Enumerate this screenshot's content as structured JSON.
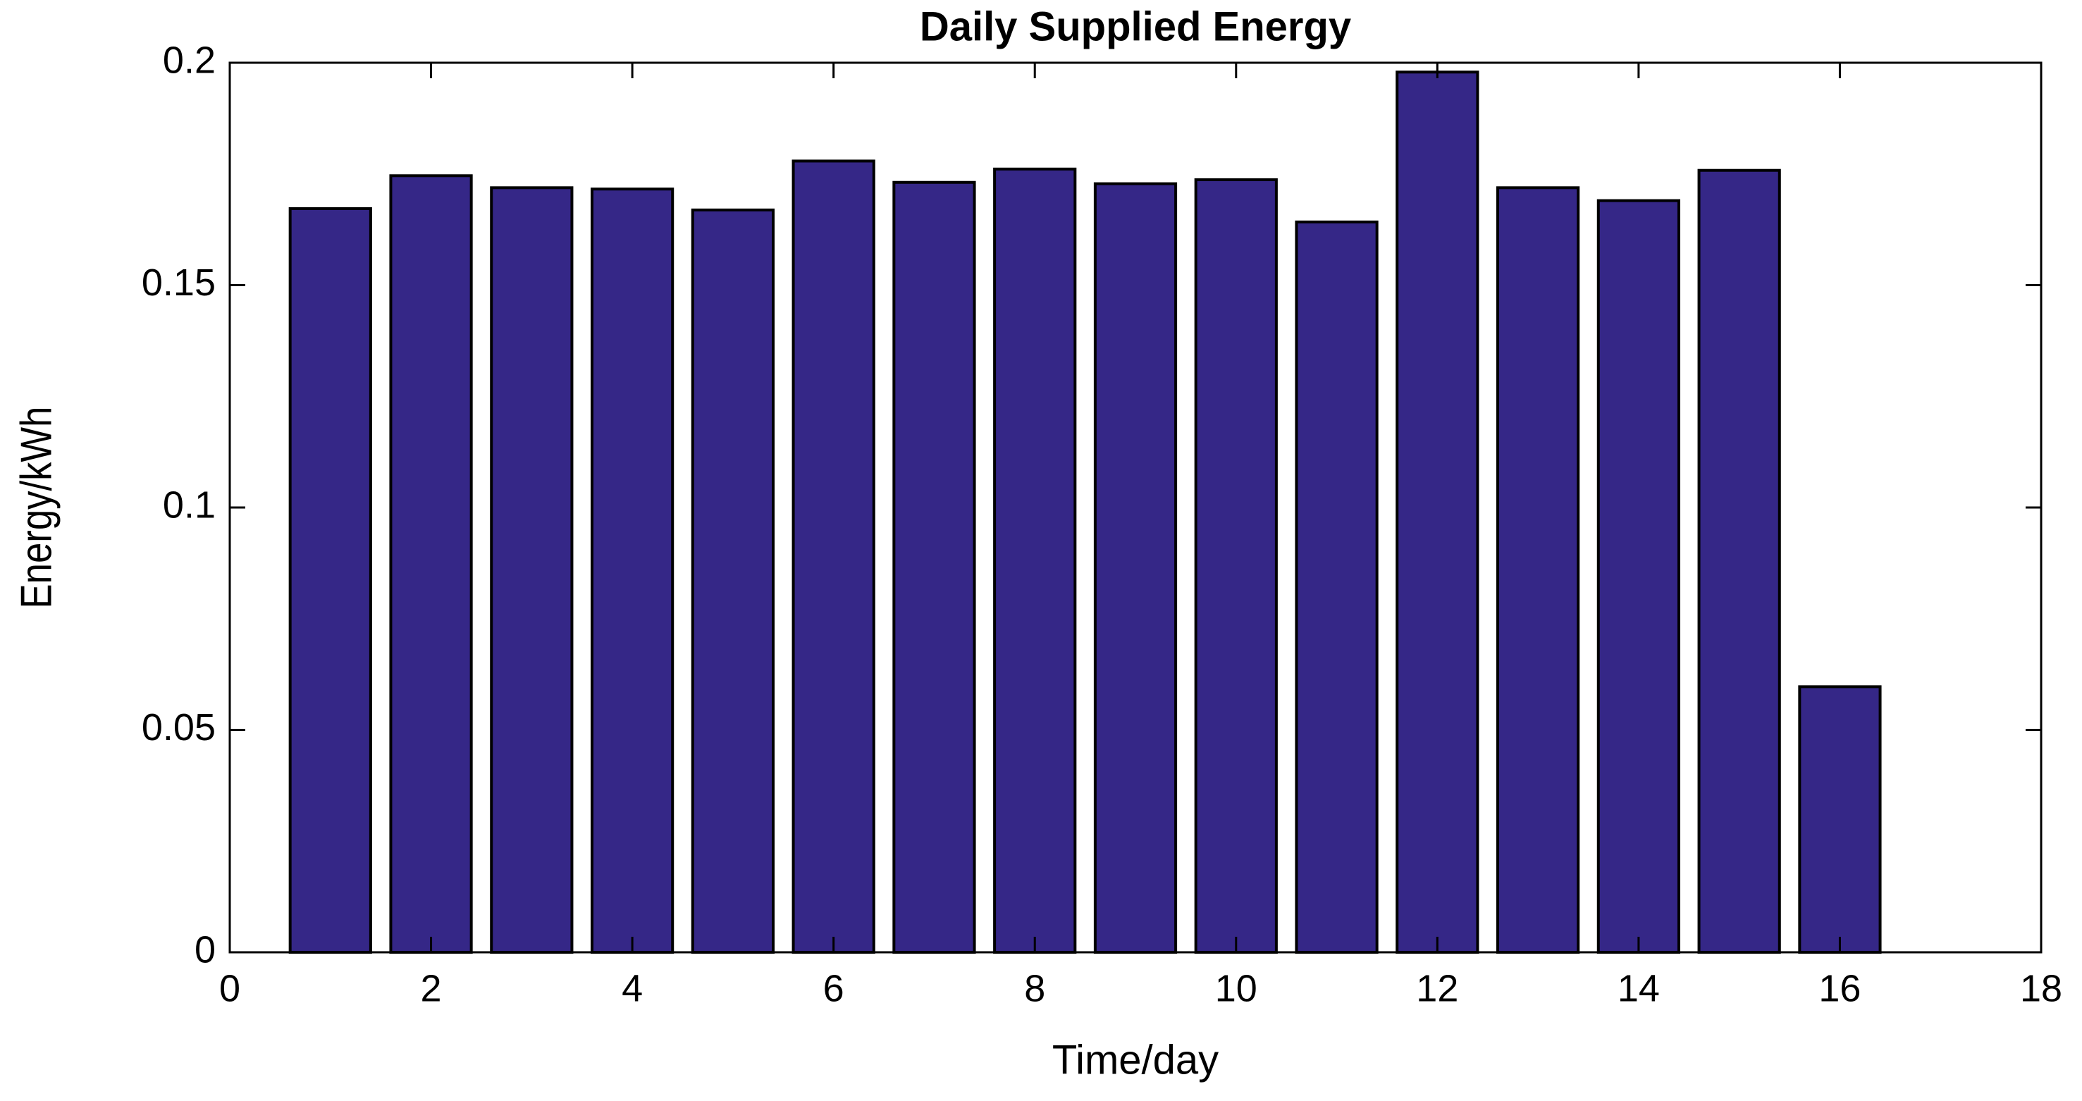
{
  "chart_data": {
    "type": "bar",
    "title": "Daily Supplied Energy",
    "x_label": "Time/day",
    "y_label": "Energy/kWh",
    "x": [
      1,
      2,
      3,
      4,
      5,
      6,
      7,
      8,
      9,
      10,
      11,
      12,
      13,
      14,
      15,
      16
    ],
    "values": [
      0.1672,
      0.1746,
      0.1719,
      0.1716,
      0.1669,
      0.1779,
      0.1731,
      0.1761,
      0.1728,
      0.1737,
      0.1642,
      0.1979,
      0.1719,
      0.169,
      0.1758,
      0.0597
    ],
    "color": "#352787",
    "xlim": [
      0,
      18
    ],
    "xticks": [
      0,
      2,
      4,
      6,
      8,
      10,
      12,
      14,
      16,
      18
    ],
    "ylim": [
      0,
      0.2
    ],
    "yticks": [
      0,
      0.05,
      0.1,
      0.15,
      0.2
    ]
  }
}
